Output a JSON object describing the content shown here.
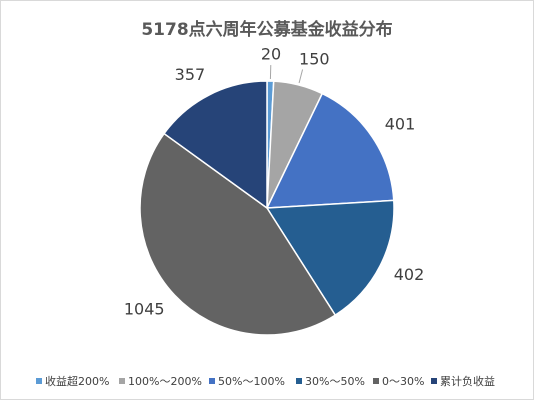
{
  "chart_data": {
    "type": "pie",
    "title": "5178点六周年公募基金收益分布",
    "categories": [
      "收益超200%",
      "100%～200%",
      "50%～100%",
      "30%～50%",
      "0～30%",
      "累计负收益"
    ],
    "values": [
      20,
      150,
      401,
      402,
      1045,
      357
    ],
    "colors": [
      "#5b9bd5",
      "#a5a5a5",
      "#4472c4",
      "#255e91",
      "#636363",
      "#264478"
    ],
    "legend": "bottom"
  }
}
